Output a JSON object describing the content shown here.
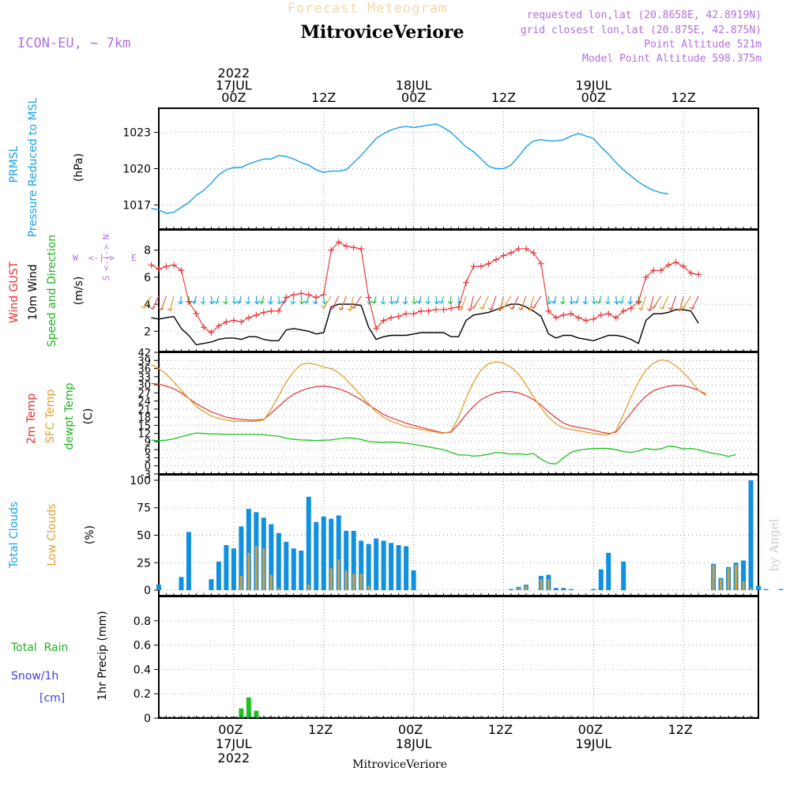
{
  "header": {
    "subtitle": "Forecast Meteogram",
    "location": "MitroviceVeriore",
    "model": "ICON-EU, ~ 7km",
    "requested": "requested lon,lat (20.8658E, 42.8919N)",
    "closest": "grid closest lon,lat (20.875E, 42.875N)",
    "altitude": "Point Altitude 521m",
    "model_altitude": "Model Point Altitude 598.375m",
    "watermark": "by Angel"
  },
  "time_axis": {
    "top_labels": [
      {
        "hour": 24,
        "lines": [
          "2022",
          "17JUL",
          "00Z"
        ]
      },
      {
        "hour": 36,
        "lines": [
          "12Z"
        ]
      },
      {
        "hour": 48,
        "lines": [
          "18JUL",
          "00Z"
        ]
      },
      {
        "hour": 60,
        "lines": [
          "12Z"
        ]
      },
      {
        "hour": 72,
        "lines": [
          "19JUL",
          "00Z"
        ]
      },
      {
        "hour": 84,
        "lines": [
          "12Z"
        ]
      }
    ],
    "bottom_labels": [
      {
        "hour": 24,
        "lines": [
          "00Z",
          "17JUL",
          "2022"
        ]
      },
      {
        "hour": 36,
        "lines": [
          "12Z"
        ]
      },
      {
        "hour": 48,
        "lines": [
          "00Z",
          "18JUL"
        ]
      },
      {
        "hour": 60,
        "lines": [
          "12Z"
        ]
      },
      {
        "hour": 72,
        "lines": [
          "00Z",
          "19JUL"
        ]
      },
      {
        "hour": 84,
        "lines": [
          "12Z"
        ]
      }
    ],
    "footer": "MitroviceVeriore"
  },
  "panels": {
    "pressure": {
      "label_colored_1": "PRMSL",
      "label_colored_2": "Pressure Reduced to MSL",
      "unit": "(hPa)"
    },
    "wind": {
      "label_gust": "Wind GUST",
      "label_wind_1": "10m Wind",
      "label_wind_2": "Speed and Direction",
      "unit": "(m/s)",
      "compass_w": "W",
      "compass_e": "E",
      "compass_n": "N",
      "compass_s": "S"
    },
    "temp": {
      "label_t2m": "2m Temp",
      "label_sfc": "SFC Temp",
      "label_dew": "dewpt Temp",
      "unit": "(C)"
    },
    "clouds": {
      "label_total": "Total Clouds",
      "label_low": "Low Clouds",
      "unit": "(%)"
    },
    "precip": {
      "label_rain": "Total  Rain",
      "label_snow": "Snow/1h",
      "label_cm": "[cm]",
      "unit": "1hr Precip (mm)"
    }
  },
  "colors": {
    "pressure": "#1aa0e8",
    "gust": "#e83030",
    "wind": "#000000",
    "t2m": "#e04040",
    "sfc": "#e0a030",
    "dew": "#20c020",
    "total_cloud": "#1090e0",
    "low_cloud": "#d0a040",
    "rain": "#20c020",
    "purple": "#a050d0",
    "label_green": "#20b020",
    "label_blue": "#2080e0",
    "label_orange": "#e0a030",
    "snow": "#4040e0"
  },
  "chart_data": [
    {
      "type": "line",
      "title": "PRMSL Pressure Reduced to MSL",
      "ylabel": "(hPa)",
      "ylim": [
        1015,
        1025
      ],
      "yticks": [
        1017,
        1020,
        1023
      ],
      "x_hours_start": 13,
      "series": [
        {
          "name": "PRMSL",
          "values": [
            1016.7,
            1016.6,
            1016.3,
            1016.4,
            1016.8,
            1017.2,
            1017.8,
            1018.2,
            1018.8,
            1019.5,
            1019.9,
            1020.1,
            1020.1,
            1020.4,
            1020.6,
            1020.8,
            1020.8,
            1021.1,
            1021.0,
            1020.8,
            1020.5,
            1020.3,
            1019.9,
            1019.7,
            1019.8,
            1019.8,
            1019.9,
            1020.5,
            1021.1,
            1021.8,
            1022.5,
            1022.9,
            1023.2,
            1023.4,
            1023.5,
            1023.4,
            1023.5,
            1023.6,
            1023.7,
            1023.4,
            1023.0,
            1022.4,
            1021.8,
            1021.4,
            1020.8,
            1020.2,
            1020.0,
            1020.0,
            1020.3,
            1021.0,
            1021.8,
            1022.3,
            1022.4,
            1022.3,
            1022.3,
            1022.4,
            1022.7,
            1022.9,
            1022.7,
            1022.5,
            1021.8,
            1021.2,
            1020.5,
            1019.9,
            1019.4,
            1018.9,
            1018.5,
            1018.2,
            1018.0,
            1017.9
          ]
        }
      ]
    },
    {
      "type": "line",
      "title": "Wind GUST / 10m Wind Speed and Direction",
      "ylabel": "(m/s)",
      "ylim": [
        0.5,
        9.5
      ],
      "yticks": [
        2,
        4,
        6,
        8
      ],
      "x_hours_start": 13,
      "series": [
        {
          "name": "Wind GUST",
          "values": [
            6.9,
            6.6,
            6.8,
            6.9,
            6.5,
            4.2,
            3.3,
            2.3,
            1.9,
            2.4,
            2.7,
            2.8,
            2.7,
            3.0,
            3.2,
            3.4,
            3.5,
            3.5,
            4.5,
            4.7,
            4.8,
            4.7,
            4.5,
            4.7,
            8.0,
            8.6,
            8.3,
            8.2,
            8.1,
            4.5,
            2.2,
            2.8,
            3.0,
            3.1,
            3.3,
            3.3,
            3.5,
            3.5,
            3.6,
            3.6,
            3.7,
            3.8,
            5.6,
            6.8,
            6.8,
            7.0,
            7.3,
            7.6,
            7.8,
            8.1,
            8.1,
            7.8,
            7.0,
            3.5,
            3.0,
            3.2,
            3.3,
            3.0,
            2.8,
            2.9,
            3.2,
            3.3,
            3.0,
            3.5,
            3.7,
            4.2,
            6.0,
            6.5,
            6.5,
            6.9,
            7.1,
            6.8,
            6.3,
            6.2
          ]
        },
        {
          "name": "10m Wind",
          "values": [
            3.0,
            2.9,
            3.0,
            3.1,
            2.2,
            1.7,
            1.0,
            1.1,
            1.2,
            1.4,
            1.5,
            1.5,
            1.4,
            1.6,
            1.6,
            1.4,
            1.3,
            1.3,
            2.1,
            2.2,
            2.1,
            2.0,
            1.8,
            1.9,
            3.8,
            4.0,
            4.0,
            4.0,
            3.9,
            2.3,
            1.4,
            1.6,
            1.7,
            1.7,
            1.7,
            1.8,
            1.9,
            1.9,
            1.9,
            1.9,
            1.6,
            1.6,
            2.8,
            3.2,
            3.3,
            3.4,
            3.6,
            3.8,
            4.0,
            4.0,
            3.8,
            3.5,
            3.1,
            1.8,
            1.5,
            1.7,
            1.7,
            1.5,
            1.4,
            1.3,
            1.5,
            1.7,
            1.7,
            1.6,
            1.4,
            1.1,
            2.8,
            3.3,
            3.3,
            3.4,
            3.6,
            3.6,
            3.5,
            2.6
          ]
        }
      ]
    },
    {
      "type": "line",
      "title": "2m Temp / SFC Temp / dewpt Temp",
      "ylabel": "(C)",
      "ylim": [
        -3,
        42
      ],
      "yticks": [
        -3,
        0,
        3,
        6,
        9,
        12,
        15,
        18,
        21,
        24,
        27,
        30,
        33,
        36,
        39,
        42
      ],
      "x_hours_start": 13,
      "series": [
        {
          "name": "2m Temp",
          "values": [
            30.5,
            30.2,
            29.5,
            28.5,
            27.0,
            25.0,
            23.0,
            21.5,
            20.0,
            19.0,
            18.0,
            17.5,
            17.2,
            17.0,
            17.0,
            17.2,
            19.5,
            22.0,
            24.5,
            26.5,
            27.8,
            28.8,
            29.3,
            29.5,
            29.2,
            28.5,
            27.5,
            26.0,
            24.5,
            22.5,
            20.8,
            19.0,
            17.8,
            16.8,
            15.8,
            15.0,
            14.2,
            13.5,
            12.8,
            12.2,
            12.5,
            15.5,
            19.0,
            22.0,
            24.5,
            26.0,
            27.0,
            27.5,
            27.5,
            27.0,
            26.0,
            24.5,
            22.5,
            20.0,
            17.8,
            15.8,
            14.8,
            14.2,
            13.8,
            13.2,
            12.5,
            12.0,
            12.5,
            16.0,
            19.5,
            23.0,
            25.8,
            27.8,
            28.8,
            29.5,
            29.8,
            29.6,
            29.0,
            28.0,
            26.5
          ]
        },
        {
          "name": "SFC Temp",
          "values": [
            37.5,
            36.0,
            34.0,
            31.0,
            28.0,
            25.0,
            22.0,
            20.0,
            18.5,
            17.5,
            17.0,
            16.5,
            16.5,
            16.5,
            16.5,
            17.0,
            21.0,
            26.0,
            31.0,
            35.0,
            37.5,
            38.0,
            37.5,
            36.5,
            36.0,
            34.5,
            32.0,
            29.0,
            26.0,
            23.0,
            20.0,
            18.0,
            16.5,
            15.5,
            14.5,
            14.0,
            13.5,
            13.0,
            12.5,
            12.0,
            12.8,
            18.0,
            25.0,
            31.0,
            35.5,
            37.8,
            38.5,
            38.0,
            36.5,
            34.0,
            30.0,
            25.5,
            21.5,
            18.0,
            15.5,
            14.0,
            13.5,
            13.0,
            12.5,
            12.0,
            11.5,
            11.5,
            13.0,
            19.0,
            25.5,
            31.0,
            35.5,
            38.0,
            39.2,
            38.8,
            37.0,
            34.5,
            31.5,
            28.0,
            26.0
          ]
        },
        {
          "name": "dewpt Temp",
          "values": [
            9.5,
            9.3,
            9.5,
            10.0,
            10.8,
            11.5,
            12.2,
            12.0,
            11.8,
            11.8,
            11.6,
            11.6,
            11.6,
            11.6,
            11.6,
            11.5,
            11.2,
            11.0,
            10.2,
            9.8,
            9.6,
            9.5,
            9.4,
            9.5,
            9.6,
            10.0,
            10.4,
            10.2,
            9.8,
            9.0,
            8.8,
            8.6,
            8.8,
            8.6,
            8.4,
            8.0,
            7.5,
            7.0,
            6.5,
            6.0,
            5.0,
            4.0,
            4.0,
            3.6,
            3.8,
            4.3,
            5.0,
            4.8,
            4.3,
            4.5,
            4.2,
            4.6,
            2.5,
            1.0,
            0.7,
            3.0,
            5.0,
            5.8,
            6.2,
            6.4,
            6.5,
            6.4,
            6.0,
            5.3,
            5.0,
            5.5,
            6.5,
            6.0,
            6.3,
            7.3,
            7.0,
            6.3,
            6.5,
            6.0,
            5.2,
            4.6,
            4.2,
            3.5,
            4.2
          ]
        }
      ]
    },
    {
      "type": "bar",
      "title": "Total Clouds / Low Clouds",
      "ylabel": "(%)",
      "ylim": [
        -5,
        105
      ],
      "yticks": [
        0,
        25,
        50,
        75,
        100
      ],
      "x_hours_start": 14,
      "series": [
        {
          "name": "Total Clouds",
          "values": [
            5,
            0,
            0,
            12,
            53,
            0,
            0,
            10,
            26,
            41,
            38,
            58,
            74,
            71,
            66,
            60,
            52,
            44,
            38,
            36,
            85,
            62,
            67,
            65,
            68,
            54,
            54,
            45,
            42,
            47,
            45,
            43,
            41,
            40,
            18,
            0,
            0,
            0,
            0,
            0,
            0,
            0,
            0,
            0,
            0,
            0,
            0,
            1,
            3,
            5,
            0,
            13,
            14,
            2,
            2,
            1,
            0,
            0,
            1,
            19,
            34,
            0,
            26,
            0,
            0,
            0,
            0,
            0,
            0,
            0,
            0,
            0,
            0,
            0,
            24,
            11,
            21,
            25,
            27,
            100,
            4,
            1,
            0,
            1
          ]
        },
        {
          "name": "Low Clouds",
          "values": [
            0,
            0,
            0,
            0,
            0,
            0,
            0,
            0,
            0,
            0,
            0,
            13,
            34,
            40,
            38,
            14,
            2,
            0,
            0,
            0,
            5,
            0,
            0,
            20,
            28,
            18,
            15,
            15,
            4,
            0,
            0,
            0,
            0,
            0,
            0,
            0,
            0,
            0,
            0,
            0,
            0,
            0,
            0,
            0,
            0,
            0,
            0,
            0,
            2,
            4,
            0,
            10,
            10,
            0,
            0,
            0,
            0,
            0,
            0,
            0,
            0,
            0,
            0,
            0,
            0,
            0,
            0,
            0,
            0,
            0,
            0,
            0,
            0,
            0,
            23,
            10,
            20,
            23,
            8,
            2,
            0,
            0,
            0,
            0
          ]
        }
      ]
    },
    {
      "type": "bar",
      "title": "Total Rain / Snow per 1h",
      "ylabel": "1hr Precip (mm)",
      "ylim": [
        0,
        1.0
      ],
      "yticks": [
        0,
        0.2,
        0.4,
        0.6,
        0.8
      ],
      "series": [
        {
          "name": "Total Rain",
          "x": [
            25,
            26,
            27
          ],
          "values": [
            0.08,
            0.17,
            0.06
          ]
        }
      ]
    }
  ]
}
